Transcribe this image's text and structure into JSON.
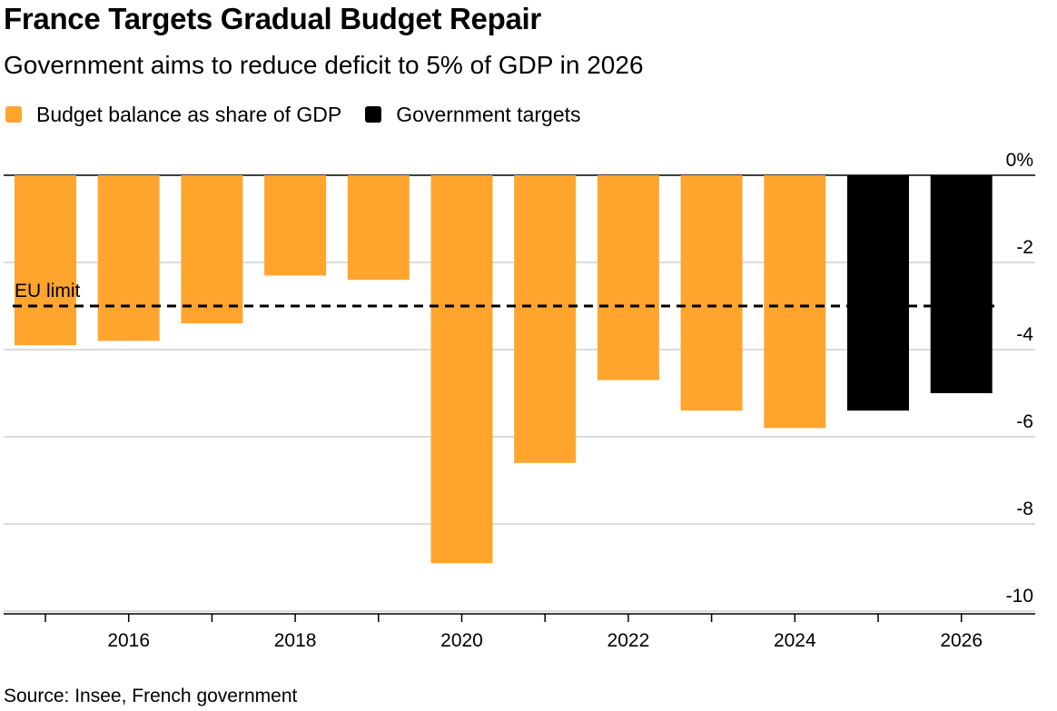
{
  "title": "France Targets Gradual Budget Repair",
  "subtitle": "Government aims to reduce deficit to 5% of GDP in 2026",
  "legend": [
    {
      "label": "Budget balance as share of GDP",
      "color": "#FFA52E"
    },
    {
      "label": "Government targets",
      "color": "#000000"
    }
  ],
  "source": "Source: Insee, French government",
  "chart_data": {
    "type": "bar",
    "title": "France Targets Gradual Budget Repair",
    "subtitle": "Government aims to reduce deficit to 5% of GDP in 2026",
    "xlabel": "",
    "ylabel": "",
    "x_tick_labels": [
      "2016",
      "2018",
      "2020",
      "2022",
      "2024",
      "2026"
    ],
    "y_tick_labels": [
      "0%",
      "-2",
      "-4",
      "-6",
      "-8",
      "-10"
    ],
    "ylim": [
      -10,
      0
    ],
    "grid": true,
    "legend_position": "top-left",
    "series": [
      {
        "name": "Budget balance as share of GDP",
        "color": "#FFA52E",
        "x": [
          2015,
          2016,
          2017,
          2018,
          2019,
          2020,
          2021,
          2022,
          2023,
          2024
        ],
        "values": [
          -3.9,
          -3.8,
          -3.4,
          -2.3,
          -2.4,
          -8.9,
          -6.6,
          -4.7,
          -5.4,
          -5.8
        ]
      },
      {
        "name": "Government targets",
        "color": "#000000",
        "x": [
          2025,
          2026
        ],
        "values": [
          -5.4,
          -5.0
        ]
      }
    ],
    "annotations": [
      {
        "label": "EU limit",
        "value": -3,
        "style": "dashed"
      }
    ]
  }
}
